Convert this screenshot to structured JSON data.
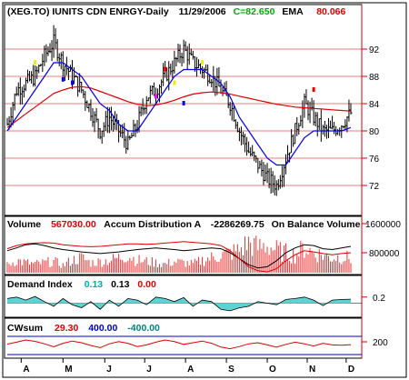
{
  "colors": {
    "background": "#ffffff",
    "frame": "#000000",
    "panel_border": "#cc0000",
    "price_bar": "#000000",
    "ema": "#dd0000",
    "short_ma": "#0000ee",
    "volume_bar": "#ee3333",
    "accum_dist": "#000000",
    "obv": "#dd0000",
    "demand_fill": "#5fd3d3",
    "demand_line": "#000000",
    "cwsum_red": "#dd0000",
    "cwsum_blue": "#0000cc",
    "green_text": "#00aa00",
    "cyan_text": "#00aaaa",
    "teal_text": "#008080",
    "marker_yellow": "#eeee00",
    "marker_magenta": "#ff00ff",
    "marker_blue": "#0000ee",
    "marker_red": "#ee0000"
  },
  "header": {
    "symbol": "(XEG.TO) IUNITS CDN ENRGY-Daily",
    "date": "11/29/2006",
    "close_label": "C=82.650",
    "ema_label": "EMA",
    "ema_value": "80.066"
  },
  "volume_panel": {
    "volume_label": "Volume",
    "volume_value": "567030.00",
    "accum_label": "Accum Distribution A",
    "accum_value": "-2286269.75",
    "obv_label": "On Balance Volume",
    "ticks": [
      "1600000",
      "800000"
    ]
  },
  "demand_panel": {
    "label": "Demand Index",
    "value1": "0.13",
    "value2": "0.13",
    "value3": "0.00",
    "ticks": [
      "0.2"
    ]
  },
  "cwsum_panel": {
    "label": "CWsum",
    "value1": "29.30",
    "value2": "400.00",
    "value3": "-400.00",
    "ticks": [
      "200"
    ]
  },
  "chart_data": {
    "type": "line",
    "title": "(XEG.TO) IUNITS CDN ENRGY-Daily",
    "x_tick_labels": [
      "A",
      "M",
      "J",
      "J",
      "A",
      "S",
      "O",
      "N",
      "D"
    ],
    "x_months": [
      {
        "label": "A",
        "week": 1.5
      },
      {
        "label": "M",
        "week": 6
      },
      {
        "label": "J",
        "week": 10.5
      },
      {
        "label": "J",
        "week": 14.8
      },
      {
        "label": "A",
        "week": 19.2
      },
      {
        "label": "S",
        "week": 23.6
      },
      {
        "label": "O",
        "week": 28
      },
      {
        "label": "N",
        "week": 32.3
      },
      {
        "label": "D",
        "week": 36.5
      }
    ],
    "price_ylim": [
      68,
      96
    ],
    "price_ticks": [
      72,
      76,
      80,
      84,
      88,
      92
    ],
    "price_close_weekly": [
      81,
      86,
      87,
      88,
      91,
      93,
      90,
      88,
      86,
      83,
      80,
      82,
      80,
      78,
      81,
      85,
      86,
      88,
      90,
      92,
      90,
      89,
      88,
      86,
      84,
      80,
      77,
      75,
      73,
      72,
      76,
      80,
      84,
      82,
      80,
      80,
      81,
      82.65
    ],
    "ema_weekly": [
      80.5,
      81.5,
      82.5,
      83.5,
      84.5,
      85.5,
      86.0,
      86.4,
      86.5,
      86.3,
      85.8,
      85.3,
      84.8,
      84.3,
      83.9,
      83.7,
      83.8,
      84.1,
      84.5,
      85.0,
      85.4,
      85.6,
      85.7,
      85.6,
      85.4,
      85.1,
      84.8,
      84.5,
      84.2,
      83.9,
      83.7,
      83.5,
      83.4,
      83.3,
      83.2,
      83.1,
      83.0,
      82.9
    ],
    "short_ma_weekly": [
      80,
      82,
      84,
      86,
      88,
      90,
      90,
      89,
      88,
      86,
      84,
      83,
      81,
      80,
      80,
      82,
      84,
      86,
      88,
      89,
      89,
      89,
      88,
      87,
      85,
      82,
      80,
      78,
      76,
      75,
      75,
      77,
      79,
      80,
      80,
      80,
      80,
      80.5
    ],
    "series": [
      {
        "name": "EMA",
        "color": "#dd0000"
      },
      {
        "name": "Volume",
        "color": "#ee3333"
      },
      {
        "name": "Accum Distribution A",
        "color": "#000000"
      },
      {
        "name": "On Balance Volume",
        "color": "#dd0000"
      },
      {
        "name": "Demand Index",
        "color": "#5fd3d3"
      },
      {
        "name": "CWsum",
        "color": "#dd0000"
      }
    ],
    "volume_ylim": [
      0,
      1600000
    ],
    "volume_ticks": [
      800000,
      1600000
    ],
    "volume_weekly": [
      300000,
      500000,
      400000,
      350000,
      400000,
      450000,
      300000,
      500000,
      600000,
      400000,
      450000,
      500000,
      600000,
      700000,
      500000,
      450000,
      400000,
      350000,
      450000,
      400000,
      350000,
      500000,
      600000,
      700000,
      800000,
      900000,
      1200000,
      1000000,
      1100000,
      900000,
      800000,
      700000,
      1000000,
      800000,
      700000,
      600000,
      650000,
      567030
    ],
    "accum_dist_weekly": [
      0.55,
      0.62,
      0.7,
      0.72,
      0.68,
      0.62,
      0.58,
      0.55,
      0.52,
      0.5,
      0.48,
      0.5,
      0.52,
      0.55,
      0.58,
      0.6,
      0.62,
      0.6,
      0.58,
      0.55,
      0.57,
      0.6,
      0.62,
      0.6,
      0.5,
      0.35,
      0.2,
      0.12,
      0.15,
      0.3,
      0.5,
      0.62,
      0.7,
      0.68,
      0.6,
      0.58,
      0.62,
      0.66
    ],
    "obv_weekly": [
      0.6,
      0.68,
      0.72,
      0.74,
      0.75,
      0.74,
      0.7,
      0.68,
      0.66,
      0.65,
      0.66,
      0.68,
      0.7,
      0.72,
      0.72,
      0.71,
      0.72,
      0.74,
      0.76,
      0.78,
      0.76,
      0.74,
      0.72,
      0.68,
      0.55,
      0.35,
      0.15,
      0.05,
      0.02,
      0.1,
      0.3,
      0.45,
      0.55,
      0.52,
      0.48,
      0.45,
      0.48,
      0.5
    ],
    "demand_ylim": [
      -0.4,
      0.4
    ],
    "demand_ticks": [
      0.2
    ],
    "demand_weekly": [
      0.15,
      0.2,
      0.1,
      0.22,
      0.05,
      -0.1,
      0.15,
      -0.05,
      -0.15,
      0.05,
      -0.2,
      0.1,
      -0.1,
      0.15,
      0.1,
      -0.05,
      0.2,
      0.15,
      0.05,
      0.18,
      -0.1,
      0.1,
      0.05,
      -0.2,
      -0.25,
      -0.15,
      -0.1,
      0.05,
      0.0,
      -0.05,
      0.12,
      0.15,
      0.2,
      0.1,
      -0.08,
      0.1,
      0.12,
      0.13
    ],
    "cwsum_ylim": [
      -400,
      400
    ],
    "cwsum_ticks": [
      200
    ],
    "cwsum_weekly": [
      50,
      120,
      200,
      150,
      60,
      -50,
      80,
      160,
      100,
      0,
      -80,
      60,
      140,
      80,
      -40,
      20,
      120,
      200,
      140,
      40,
      100,
      160,
      80,
      -60,
      -120,
      -40,
      60,
      100,
      20,
      -60,
      40,
      120,
      60,
      -20,
      80,
      20,
      10,
      29.3
    ],
    "cwsum_levels": [
      400,
      -400
    ]
  }
}
